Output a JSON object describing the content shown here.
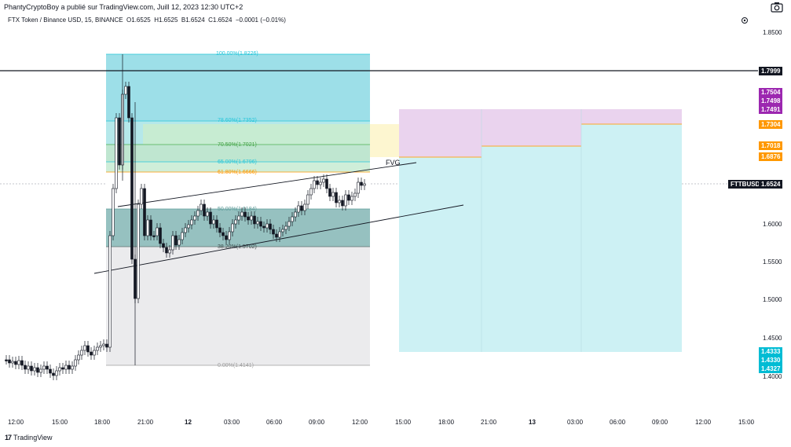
{
  "header": {
    "credit": "PhantyCryptoBoy a publié sur TradingView.com, Juill 12, 2023 12:30 UTC+2"
  },
  "symbol_bar": {
    "title": "FTX Token / Binance USD, 15, BINANCE",
    "open": "O1.6525",
    "high": "H1.6525",
    "low": "B1.6524",
    "close": "C1.6524",
    "change": "−0.0001 (−0.01%)"
  },
  "price_axis": {
    "ticks": [
      "1.8500",
      "1.6000",
      "1.5500",
      "1.5000",
      "1.4500",
      "1.4000"
    ]
  },
  "price_tags": {
    "hline": "1.7999",
    "purple_1": "1.7504",
    "purple_2": "1.7498",
    "purple_3": "1.7491",
    "orange_1": "1.7304",
    "orange_2": "1.7018",
    "orange_3": "1.6876",
    "symbol": "FTTBUSD",
    "current": "1.6524",
    "teal_1": "1.4333",
    "teal_2": "1.4330",
    "teal_3": "1.4327"
  },
  "time_axis": {
    "ticks": [
      "12:00",
      "15:00",
      "18:00",
      "21:00",
      "12",
      "03:00",
      "06:00",
      "09:00",
      "12:00",
      "15:00",
      "18:00",
      "21:00",
      "13",
      "03:00",
      "06:00",
      "09:00",
      "12:00",
      "15:00"
    ]
  },
  "fib_levels": {
    "l100": "100.00%(1.8226)",
    "l786": "78.60%(1.7352)",
    "l705": "70.50%(1.7021)",
    "l65": "65.00%(1.6796)",
    "l618": "61.80%(1.6666)",
    "l50": "50.00%(1.6184)",
    "l382": "38.20%(1.5702)",
    "l0": "0.00%(1.4141)"
  },
  "annotations": {
    "fvg": "FVG"
  },
  "footer": {
    "brand": "TradingView"
  },
  "colors": {
    "fib_cyan": "#26c6da",
    "fib_orange": "#ff9800",
    "purple_tag": "#9c27b0",
    "orange_tag": "#ff9800",
    "teal_tag": "#00bcd4"
  }
}
